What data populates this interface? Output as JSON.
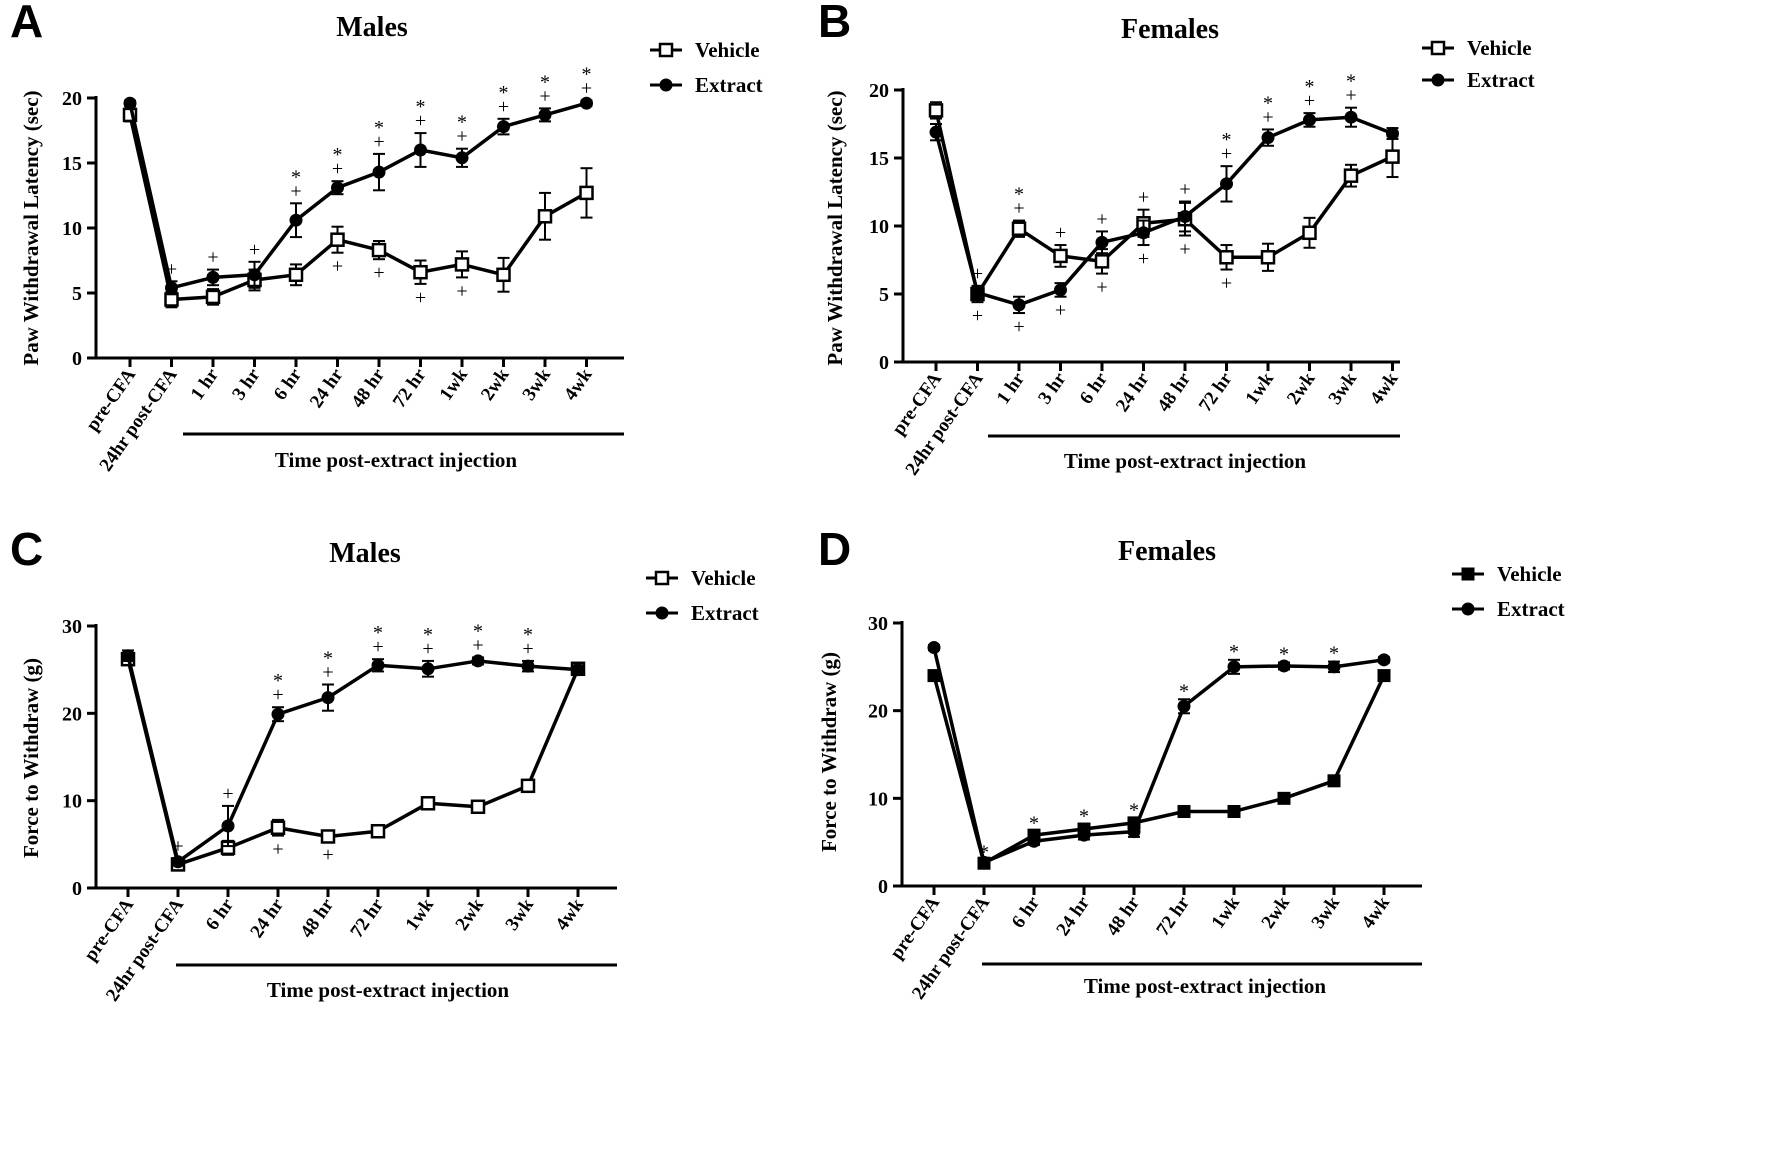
{
  "chart_data": [
    {
      "panel": "A",
      "type": "line",
      "title": "Males",
      "ylabel": "Paw Withdrawal Latency (sec)",
      "xlabel": "Time post-extract injection",
      "ylim": [
        0,
        20
      ],
      "yticks": [
        0,
        5,
        10,
        15,
        20
      ],
      "categories": [
        "pre-CFA",
        "24hr post-CFA",
        "1 hr",
        "3 hr",
        "6 hr",
        "24 hr",
        "48 hr",
        "72 hr",
        "1wk",
        "2wk",
        "3wk",
        "4wk"
      ],
      "series": [
        {
          "name": "Vehicle",
          "marker": "open-square",
          "values": [
            18.7,
            4.5,
            4.7,
            6.0,
            6.4,
            9.1,
            8.3,
            6.6,
            7.2,
            6.4,
            10.9,
            12.7
          ],
          "errors": [
            0.5,
            0.6,
            0.6,
            0.8,
            0.8,
            1.0,
            0.7,
            0.9,
            1.0,
            1.3,
            1.8,
            1.9
          ]
        },
        {
          "name": "Extract",
          "marker": "filled-circle",
          "values": [
            19.6,
            5.4,
            6.2,
            6.4,
            10.6,
            13.1,
            14.3,
            16.0,
            15.4,
            17.8,
            18.7,
            19.6
          ],
          "errors": [
            0.2,
            0.5,
            0.6,
            1.0,
            1.3,
            0.5,
            1.4,
            1.3,
            0.7,
            0.6,
            0.5,
            0.2
          ]
        }
      ],
      "annotations": [
        {
          "cat": "24hr post-CFA",
          "symbols": [
            "+"
          ]
        },
        {
          "cat": "1 hr",
          "symbols": [
            "+"
          ]
        },
        {
          "cat": "3 hr",
          "symbols": [
            "+"
          ]
        },
        {
          "cat": "6 hr",
          "symbols": [
            "*",
            "+"
          ]
        },
        {
          "cat": "24 hr",
          "symbols": [
            "*",
            "+",
            "+"
          ]
        },
        {
          "cat": "48 hr",
          "symbols": [
            "*",
            "+",
            "+"
          ]
        },
        {
          "cat": "72 hr",
          "symbols": [
            "*",
            "+",
            "+"
          ]
        },
        {
          "cat": "1wk",
          "symbols": [
            "*",
            "+",
            "+"
          ]
        },
        {
          "cat": "2wk",
          "symbols": [
            "*",
            "+"
          ]
        },
        {
          "cat": "3wk",
          "symbols": [
            "*",
            "+"
          ]
        },
        {
          "cat": "4wk",
          "symbols": [
            "*",
            "+"
          ]
        }
      ],
      "legend": [
        "Vehicle",
        "Extract"
      ]
    },
    {
      "panel": "B",
      "type": "line",
      "title": "Females",
      "ylabel": "Paw Withdrawal Latency (sec)",
      "xlabel": "Time post-extract injection",
      "ylim": [
        0,
        20
      ],
      "yticks": [
        0,
        5,
        10,
        15,
        20
      ],
      "categories": [
        "pre-CFA",
        "24hr post-CFA",
        "1 hr",
        "3 hr",
        "6 hr",
        "24 hr",
        "48 hr",
        "72 hr",
        "1wk",
        "2wk",
        "3wk",
        "4wk"
      ],
      "series": [
        {
          "name": "Vehicle",
          "marker": "open-square",
          "values": [
            18.5,
            5.0,
            9.8,
            7.8,
            7.4,
            10.2,
            10.5,
            7.7,
            7.7,
            9.5,
            13.7,
            15.1
          ],
          "errors": [
            0.6,
            0.6,
            0.6,
            0.8,
            0.9,
            1.0,
            1.2,
            0.9,
            1.0,
            1.1,
            0.8,
            1.5
          ]
        },
        {
          "name": "Extract",
          "marker": "filled-circle",
          "values": [
            16.9,
            5.1,
            4.2,
            5.3,
            8.8,
            9.5,
            10.7,
            13.1,
            16.5,
            17.8,
            18.0,
            16.8
          ],
          "errors": [
            0.6,
            0.4,
            0.6,
            0.5,
            0.8,
            0.9,
            1.1,
            1.3,
            0.6,
            0.5,
            0.7,
            0.4
          ]
        }
      ],
      "annotations": [
        {
          "cat": "24hr post-CFA",
          "symbols": [
            "+",
            "+"
          ]
        },
        {
          "cat": "1 hr",
          "symbols": [
            "*",
            "+",
            "+"
          ]
        },
        {
          "cat": "3 hr",
          "symbols": [
            "+",
            "+"
          ]
        },
        {
          "cat": "6 hr",
          "symbols": [
            "+",
            "+"
          ]
        },
        {
          "cat": "24 hr",
          "symbols": [
            "+",
            "+"
          ]
        },
        {
          "cat": "48 hr",
          "symbols": [
            "+",
            "+"
          ]
        },
        {
          "cat": "72 hr",
          "symbols": [
            "*",
            "+",
            "+"
          ]
        },
        {
          "cat": "1wk",
          "symbols": [
            "*",
            "+"
          ]
        },
        {
          "cat": "2wk",
          "symbols": [
            "*",
            "+"
          ]
        },
        {
          "cat": "3wk",
          "symbols": [
            "*",
            "+"
          ]
        }
      ],
      "legend": [
        "Vehicle",
        "Extract"
      ]
    },
    {
      "panel": "C",
      "type": "line",
      "title": "Males",
      "ylabel": "Force to Withdraw (g)",
      "xlabel": "Time post-extract injection",
      "ylim": [
        0,
        30
      ],
      "yticks": [
        0,
        10,
        20,
        30
      ],
      "categories": [
        "pre-CFA",
        "24hr post-CFA",
        "6 hr",
        "24 hr",
        "48 hr",
        "72 hr",
        "1wk",
        "2wk",
        "3wk",
        "4wk"
      ],
      "series": [
        {
          "name": "Vehicle",
          "marker": "open-square",
          "values": [
            26.2,
            2.7,
            4.6,
            6.9,
            5.9,
            6.5,
            9.7,
            9.3,
            11.7,
            25.1
          ],
          "errors": [
            0.6,
            0.4,
            0.8,
            0.9,
            0.5,
            0.6,
            0.6,
            0.6,
            0.5,
            0.6
          ]
        },
        {
          "name": "Extract",
          "marker": "filled-circle",
          "values": [
            26.6,
            3.0,
            7.1,
            19.9,
            21.8,
            25.5,
            25.1,
            26.0,
            25.4,
            25.0
          ],
          "errors": [
            0.6,
            0.4,
            2.3,
            0.8,
            1.5,
            0.7,
            0.9,
            0.4,
            0.6,
            0.5
          ]
        }
      ],
      "annotations": [
        {
          "cat": "24hr post-CFA",
          "symbols": [
            "+"
          ]
        },
        {
          "cat": "6 hr",
          "symbols": [
            "+"
          ]
        },
        {
          "cat": "24 hr",
          "symbols": [
            "*",
            "+",
            "+"
          ]
        },
        {
          "cat": "48 hr",
          "symbols": [
            "*",
            "+",
            "+"
          ]
        },
        {
          "cat": "72 hr",
          "symbols": [
            "*",
            "+"
          ]
        },
        {
          "cat": "1wk",
          "symbols": [
            "*",
            "+"
          ]
        },
        {
          "cat": "2wk",
          "symbols": [
            "*",
            "+"
          ]
        },
        {
          "cat": "3wk",
          "symbols": [
            "*",
            "+"
          ]
        }
      ],
      "legend": [
        "Vehicle",
        "Extract"
      ]
    },
    {
      "panel": "D",
      "type": "line",
      "title": "Females",
      "ylabel": "Force to Withdraw (g)",
      "xlabel": "Time post-extract injection",
      "ylim": [
        0,
        30
      ],
      "yticks": [
        0,
        10,
        20,
        30
      ],
      "categories": [
        "pre-CFA",
        "24hr post-CFA",
        "6 hr",
        "24 hr",
        "48 hr",
        "72 hr",
        "1wk",
        "2wk",
        "3wk",
        "4wk"
      ],
      "series": [
        {
          "name": "Vehicle",
          "marker": "filled-square",
          "values": [
            24.0,
            2.6,
            5.8,
            6.5,
            7.2,
            8.5,
            8.5,
            10.0,
            12.0,
            24.0
          ],
          "errors": [
            0.5,
            0.3,
            0.4,
            0.5,
            0.5,
            0.3,
            0.3,
            0.4,
            0.6,
            0.4
          ]
        },
        {
          "name": "Extract",
          "marker": "filled-circle",
          "values": [
            27.2,
            2.7,
            5.1,
            5.8,
            6.2,
            20.5,
            25.0,
            25.1,
            25.0,
            25.8
          ],
          "errors": [
            0.3,
            0.2,
            0.4,
            0.5,
            0.6,
            0.8,
            0.8,
            0.4,
            0.6,
            0.3
          ]
        }
      ],
      "annotations": [
        {
          "cat": "24hr post-CFA",
          "symbols": [
            "*"
          ]
        },
        {
          "cat": "6 hr",
          "symbols": [
            "*"
          ]
        },
        {
          "cat": "24 hr",
          "symbols": [
            "*"
          ]
        },
        {
          "cat": "48 hr",
          "symbols": [
            "*"
          ]
        },
        {
          "cat": "72 hr",
          "symbols": [
            "*"
          ]
        },
        {
          "cat": "1wk",
          "symbols": [
            "*"
          ]
        },
        {
          "cat": "2wk",
          "symbols": [
            "*"
          ]
        },
        {
          "cat": "3wk",
          "symbols": [
            "*"
          ]
        }
      ],
      "legend": [
        "Vehicle",
        "Extract"
      ]
    }
  ]
}
